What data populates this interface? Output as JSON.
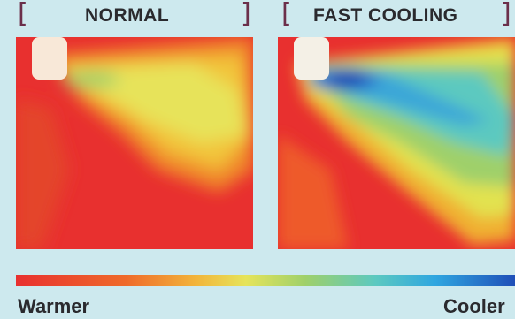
{
  "panels": {
    "left": {
      "title": "NORMAL",
      "bracket_open": "[",
      "bracket_close": "]"
    },
    "right": {
      "title": "FAST COOLING",
      "bracket_open": "[",
      "bracket_close": "]"
    }
  },
  "legend": {
    "low_label": "Warmer",
    "high_label": "Cooler"
  },
  "colors": {
    "background": "#cde9ee",
    "bracket": "#6b2f4a",
    "title_text": "#2a2a2e",
    "hot": "#e8302f",
    "cool": "#1f4fb8"
  }
}
